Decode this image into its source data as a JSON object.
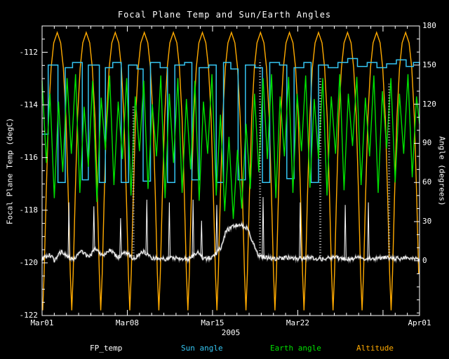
{
  "title": "Focal Plane Temp and Sun/Earth Angles",
  "axes": {
    "left_title": "Focal Plane Temp (degC)",
    "right_title": "Angle (degrees)",
    "year": "2005",
    "day_range": [
      0,
      31
    ],
    "temp_range": [
      -122,
      -111
    ],
    "angle_range": [
      -42,
      180
    ],
    "x_major_ticks": [
      {
        "day": 0,
        "label": "Mar01"
      },
      {
        "day": 7,
        "label": "Mar08"
      },
      {
        "day": 14,
        "label": "Mar15"
      },
      {
        "day": 21,
        "label": "Mar22"
      },
      {
        "day": 28,
        "label": ""
      },
      {
        "day": 31,
        "label": "Apr01"
      }
    ],
    "x_minor_step": 1,
    "left_ticks": [
      -112,
      -114,
      -116,
      -118,
      -120,
      -122
    ],
    "left_minor_step": 0.5,
    "right_ticks": [
      0,
      30,
      60,
      90,
      120,
      150,
      180
    ],
    "right_minor_step": 10
  },
  "legend": [
    {
      "label": "FP_temp",
      "color": "#ffffff"
    },
    {
      "label": "Sun angle",
      "color": "#35c5f2"
    },
    {
      "label": "Earth angle",
      "color": "#00e000"
    },
    {
      "label": "Altitude",
      "color": "#ffaa00"
    }
  ],
  "chart_data": {
    "type": "line",
    "title": "Focal Plane Temp and Sun/Earth Angles",
    "x_unit": "days since 2005 Mar01",
    "left_axis": "Focal Plane Temp (degC), range -122 to -111",
    "right_axis": "Angle (degrees), labeled 0 to 180",
    "series": [
      {
        "name": "Altitude",
        "axis": "right",
        "color": "#ffaa00",
        "style": "periodic",
        "period_days": 2.3846,
        "first_valley_day": 0.05,
        "cycles": 13,
        "profile": [
          [
            0,
            -38
          ],
          [
            0.05,
            -10
          ],
          [
            0.12,
            50
          ],
          [
            0.2,
            110
          ],
          [
            0.29,
            148
          ],
          [
            0.38,
            167
          ],
          [
            0.5,
            175
          ],
          [
            0.62,
            167
          ],
          [
            0.71,
            148
          ],
          [
            0.8,
            110
          ],
          [
            0.88,
            50
          ],
          [
            0.95,
            -10
          ],
          [
            1,
            -38
          ]
        ]
      },
      {
        "name": "Sun angle",
        "axis": "right",
        "color": "#35c5f2",
        "style": "step",
        "points": [
          [
            0,
            97
          ],
          [
            0.5,
            150
          ],
          [
            1.3,
            60
          ],
          [
            1.9,
            148
          ],
          [
            2.5,
            152
          ],
          [
            3.3,
            62
          ],
          [
            3.8,
            150
          ],
          [
            4.7,
            60
          ],
          [
            5.2,
            148
          ],
          [
            5.8,
            152
          ],
          [
            6.5,
            60
          ],
          [
            7.1,
            150
          ],
          [
            7.8,
            147
          ],
          [
            8.3,
            61
          ],
          [
            8.9,
            152
          ],
          [
            9.7,
            148
          ],
          [
            10.3,
            60
          ],
          [
            10.9,
            150
          ],
          [
            11.7,
            152
          ],
          [
            12.3,
            62
          ],
          [
            12.9,
            148
          ],
          [
            13.7,
            150
          ],
          [
            14.3,
            60
          ],
          [
            14.9,
            152
          ],
          [
            15.5,
            147
          ],
          [
            16.1,
            62
          ],
          [
            16.7,
            150
          ],
          [
            17.5,
            148
          ],
          [
            18.1,
            60
          ],
          [
            18.7,
            152
          ],
          [
            19.5,
            150
          ],
          [
            20.1,
            63
          ],
          [
            20.7,
            148
          ],
          [
            21.5,
            152
          ],
          [
            22.1,
            60
          ],
          [
            22.7,
            150
          ],
          [
            23.5,
            148
          ],
          [
            24.3,
            152
          ],
          [
            25.1,
            155
          ],
          [
            25.9,
            149
          ],
          [
            26.7,
            152
          ],
          [
            27.5,
            148
          ],
          [
            28.3,
            151
          ],
          [
            29.1,
            154
          ],
          [
            29.9,
            149
          ],
          [
            30.5,
            152
          ],
          [
            31,
            150
          ]
        ]
      },
      {
        "name": "Earth angle",
        "axis": "right",
        "color": "#00e000",
        "style": "line",
        "points": [
          [
            0,
            138
          ],
          [
            0.35,
            75
          ],
          [
            0.65,
            128
          ],
          [
            1.0,
            48
          ],
          [
            1.35,
            122
          ],
          [
            1.7,
            68
          ],
          [
            2.05,
            140
          ],
          [
            2.4,
            82
          ],
          [
            2.75,
            143
          ],
          [
            3.1,
            52
          ],
          [
            3.45,
            118
          ],
          [
            3.8,
            72
          ],
          [
            4.15,
            138
          ],
          [
            4.5,
            45
          ],
          [
            4.85,
            125
          ],
          [
            5.2,
            85
          ],
          [
            5.55,
            142
          ],
          [
            5.9,
            58
          ],
          [
            6.25,
            122
          ],
          [
            6.6,
            78
          ],
          [
            6.95,
            140
          ],
          [
            7.3,
            50
          ],
          [
            7.65,
            126
          ],
          [
            8.0,
            84
          ],
          [
            8.35,
            138
          ],
          [
            8.7,
            55
          ],
          [
            9.05,
            120
          ],
          [
            9.4,
            80
          ],
          [
            9.75,
            142
          ],
          [
            10.1,
            48
          ],
          [
            10.45,
            128
          ],
          [
            10.8,
            75
          ],
          [
            11.15,
            140
          ],
          [
            11.5,
            52
          ],
          [
            11.85,
            124
          ],
          [
            12.2,
            70
          ],
          [
            12.55,
            138
          ],
          [
            12.9,
            46
          ],
          [
            13.25,
            122
          ],
          [
            13.6,
            82
          ],
          [
            13.95,
            143
          ],
          [
            14.3,
            50
          ],
          [
            14.65,
            112
          ],
          [
            15.0,
            38
          ],
          [
            15.35,
            95
          ],
          [
            15.7,
            32
          ],
          [
            16.05,
            85
          ],
          [
            16.4,
            40
          ],
          [
            16.75,
            105
          ],
          [
            17.1,
            55
          ],
          [
            17.45,
            128
          ],
          [
            17.8,
            68
          ],
          [
            18.15,
            140
          ],
          [
            18.5,
            78
          ],
          [
            18.85,
            143
          ],
          [
            19.2,
            48
          ],
          [
            19.55,
            126
          ],
          [
            19.9,
            80
          ],
          [
            20.25,
            141
          ],
          [
            20.6,
            52
          ],
          [
            20.95,
            128
          ],
          [
            21.3,
            84
          ],
          [
            21.65,
            142
          ],
          [
            22.0,
            56
          ],
          [
            22.35,
            124
          ],
          [
            22.7,
            78
          ],
          [
            23.05,
            140
          ],
          [
            23.4,
            50
          ],
          [
            23.75,
            126
          ],
          [
            24.1,
            82
          ],
          [
            24.45,
            143
          ],
          [
            24.8,
            54
          ],
          [
            25.15,
            128
          ],
          [
            25.5,
            88
          ],
          [
            25.85,
            141
          ],
          [
            26.2,
            58
          ],
          [
            26.55,
            125
          ],
          [
            26.9,
            80
          ],
          [
            27.25,
            142
          ],
          [
            27.6,
            52
          ],
          [
            27.95,
            130
          ],
          [
            28.3,
            86
          ],
          [
            28.65,
            140
          ],
          [
            29.0,
            60
          ],
          [
            29.35,
            128
          ],
          [
            29.7,
            82
          ],
          [
            30.05,
            143
          ],
          [
            30.4,
            64
          ],
          [
            30.75,
            126
          ],
          [
            31,
            105
          ]
        ]
      },
      {
        "name": "FP_temp",
        "axis": "left",
        "color": "#ffffff",
        "style": "noisy",
        "noise_amp": 0.08,
        "baseline": [
          [
            0,
            -119.85
          ],
          [
            0.6,
            -119.7
          ],
          [
            1.0,
            -119.9
          ],
          [
            1.6,
            -119.55
          ],
          [
            2.1,
            -119.8
          ],
          [
            2.7,
            -119.85
          ],
          [
            3.2,
            -119.5
          ],
          [
            3.8,
            -119.8
          ],
          [
            4.4,
            -119.45
          ],
          [
            5.0,
            -119.75
          ],
          [
            5.6,
            -119.5
          ],
          [
            6.2,
            -119.8
          ],
          [
            6.9,
            -119.6
          ],
          [
            7.5,
            -119.85
          ],
          [
            8.3,
            -119.55
          ],
          [
            9.0,
            -119.8
          ],
          [
            10.0,
            -119.85
          ],
          [
            11.0,
            -119.8
          ],
          [
            12.0,
            -119.85
          ],
          [
            12.8,
            -119.6
          ],
          [
            13.2,
            -119.85
          ],
          [
            14.0,
            -119.8
          ],
          [
            14.7,
            -119.4
          ],
          [
            15.1,
            -118.8
          ],
          [
            15.7,
            -118.6
          ],
          [
            16.3,
            -118.55
          ],
          [
            16.9,
            -118.7
          ],
          [
            17.3,
            -119.2
          ],
          [
            17.8,
            -119.75
          ],
          [
            19.0,
            -119.85
          ],
          [
            20.0,
            -119.8
          ],
          [
            21.0,
            -119.85
          ],
          [
            22.0,
            -119.8
          ],
          [
            23.0,
            -119.85
          ],
          [
            24.0,
            -119.8
          ],
          [
            25.0,
            -119.85
          ],
          [
            26.0,
            -119.8
          ],
          [
            27.0,
            -119.85
          ],
          [
            28.0,
            -119.8
          ],
          [
            29.0,
            -119.85
          ],
          [
            30.0,
            -119.8
          ],
          [
            31,
            -119.85
          ]
        ],
        "spikes": [
          [
            2.2,
            -117.7
          ],
          [
            4.25,
            -117.85
          ],
          [
            6.45,
            -118.3
          ],
          [
            8.6,
            -117.6
          ],
          [
            10.45,
            -117.7
          ],
          [
            12.4,
            -117.6
          ],
          [
            13.1,
            -118.4
          ],
          [
            14.35,
            -117.8
          ],
          [
            18.15,
            -117.5
          ],
          [
            21.2,
            -117.7
          ],
          [
            24.9,
            -117.8
          ],
          [
            26.8,
            -117.7
          ]
        ],
        "dotted_columns": [
          [
            7.5,
            -114.0
          ],
          [
            17.9,
            -112.3
          ],
          [
            22.85,
            -113.0
          ],
          [
            28.5,
            -113.2
          ]
        ]
      }
    ]
  }
}
